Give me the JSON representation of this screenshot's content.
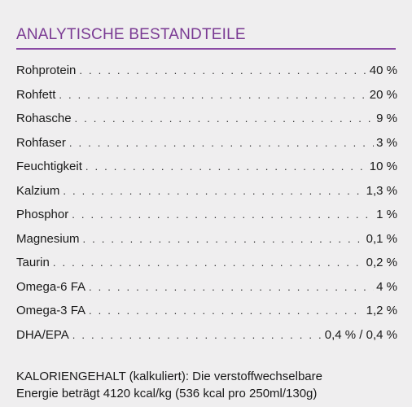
{
  "heading": "ANALYTISCHE BESTANDTEILE",
  "rows": [
    {
      "label": "Rohprotein",
      "value": "40 %"
    },
    {
      "label": "Rohfett",
      "value": "20 %"
    },
    {
      "label": "Rohasche",
      "value": "9 %"
    },
    {
      "label": "Rohfaser",
      "value": "3 %"
    },
    {
      "label": "Feuchtigkeit",
      "value": "10 %"
    },
    {
      "label": "Kalzium",
      "value": "1,3 %"
    },
    {
      "label": "Phosphor",
      "value": "1 %"
    },
    {
      "label": "Magnesium",
      "value": "0,1 %"
    },
    {
      "label": "Taurin",
      "value": "0,2 %"
    },
    {
      "label": "Omega-6 FA",
      "value": "4 %"
    },
    {
      "label": "Omega-3 FA",
      "value": "1,2 %"
    },
    {
      "label": "DHA/EPA",
      "value": "0,4 % / 0,4 %"
    }
  ],
  "calorie": {
    "line1": "KALORIENGEHALT (kalkuliert): Die verstoffwechselbare",
    "line2": "Energie beträgt 4120 kcal/kg (536 kcal pro 250ml/130g)"
  },
  "colors": {
    "heading": "#7a3a93",
    "rule": "#8a4aa4",
    "background": "#efeeef",
    "text": "#1a1a1a"
  }
}
